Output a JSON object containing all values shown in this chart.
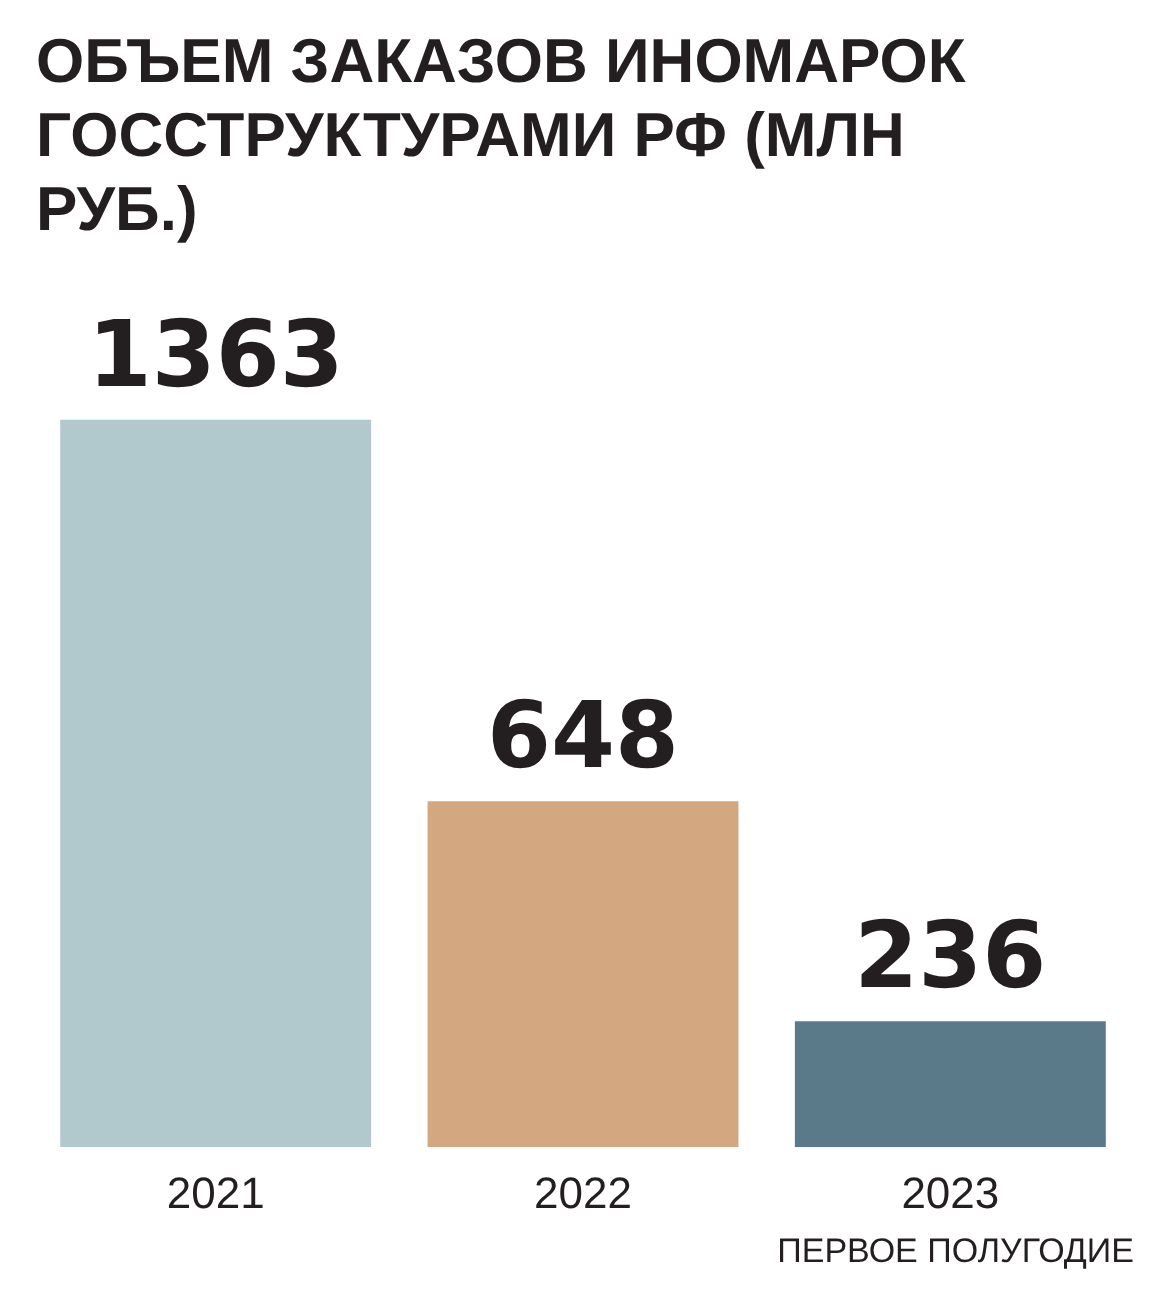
{
  "chart_data": {
    "type": "bar",
    "title": "ОБЪЕМ ЗАКАЗОВ ИНОМАРОК ГОССТРУКТУРАМИ РФ (МЛН РУБ.)",
    "categories": [
      "2021",
      "2022",
      "2023"
    ],
    "values": [
      1363,
      648,
      236
    ],
    "colors": [
      "#b1c9cc",
      "#d3a77f",
      "#5b7a89"
    ],
    "data_labels": true,
    "tick_labels": "x",
    "annotations": [
      "ПЕРВОЕ ПОЛУГОДИЕ"
    ]
  }
}
